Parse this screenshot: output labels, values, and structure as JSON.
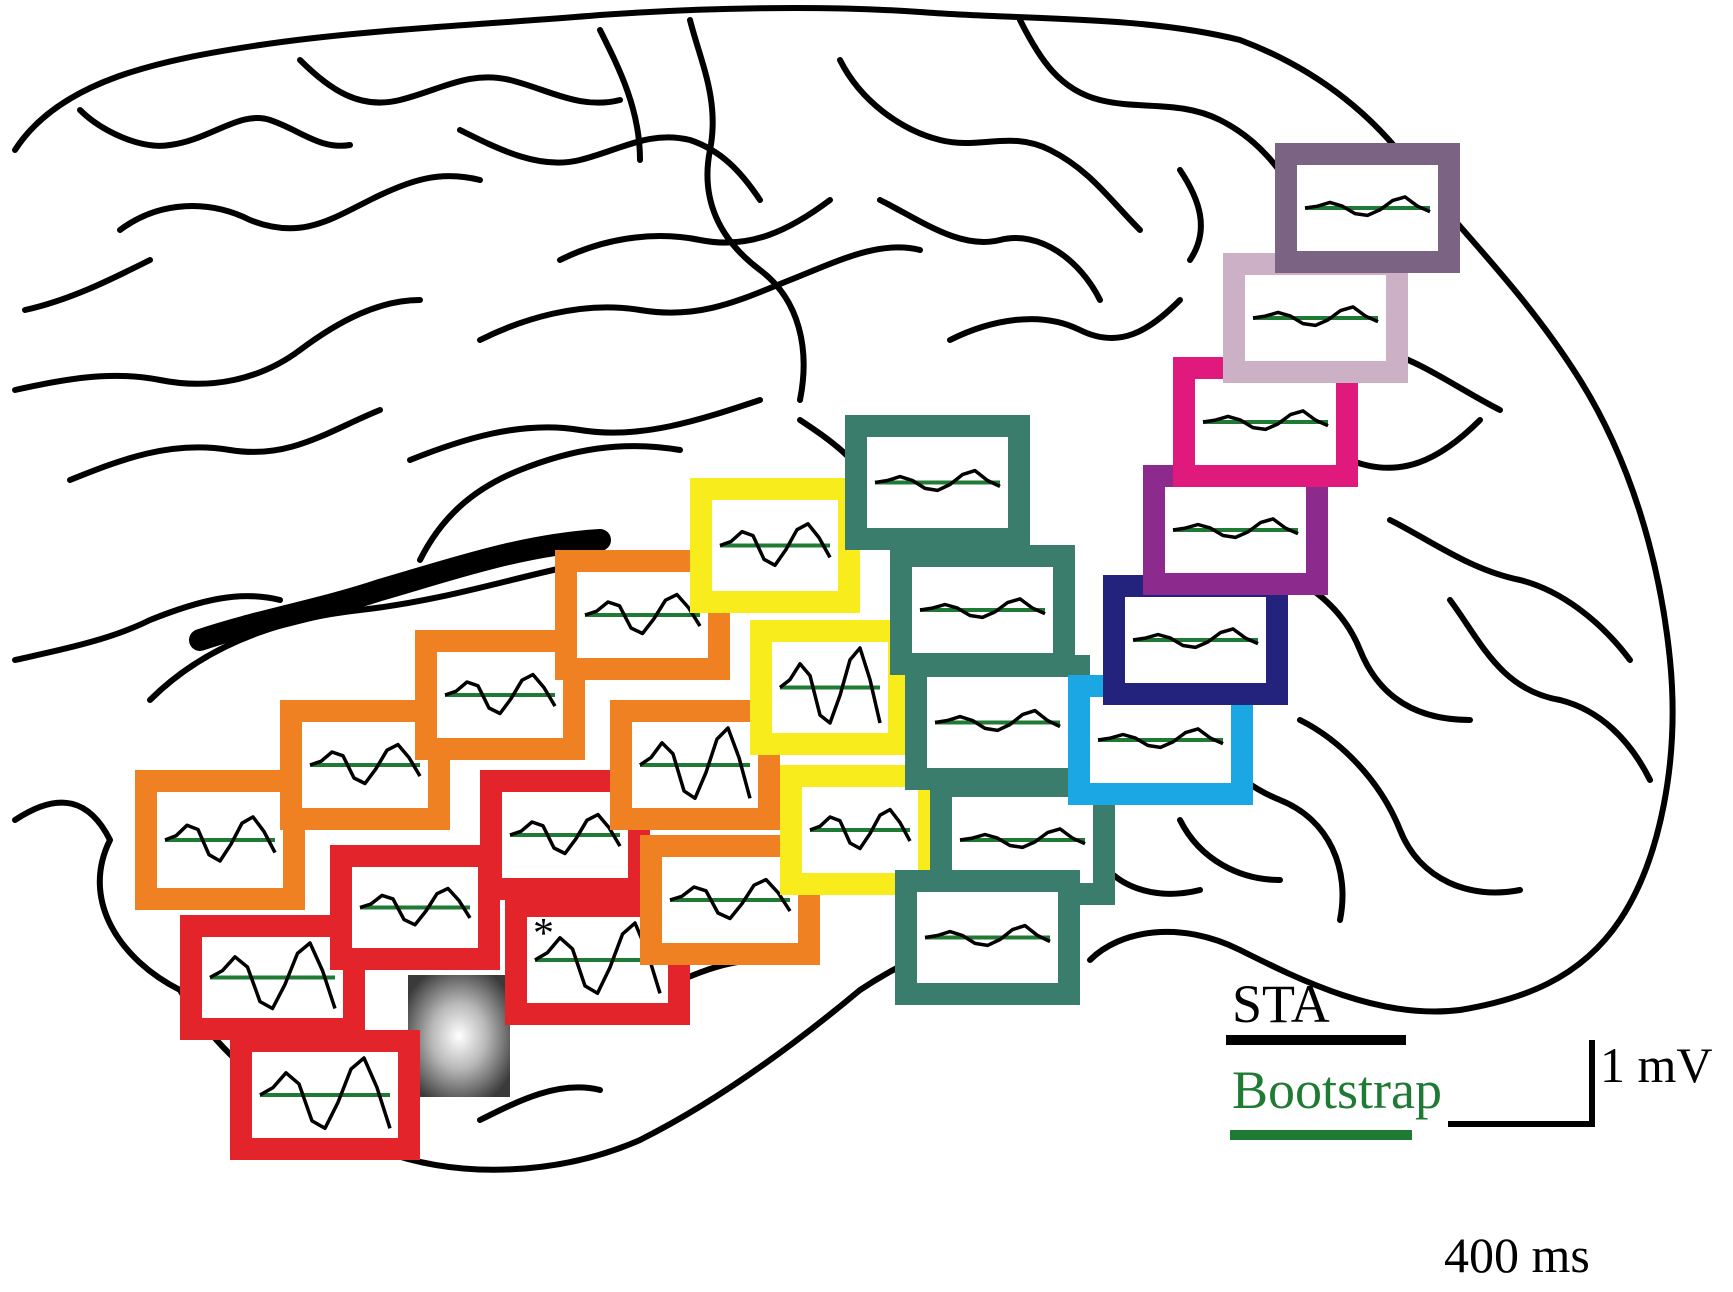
{
  "colors": {
    "outline": "#000000",
    "bootstrap": "#1f7a34",
    "sta": "#000000",
    "groups": {
      "red": "#e3242b",
      "orange": "#f08122",
      "yellow": "#f8ec1c",
      "teal": "#3a7d6c",
      "cyan": "#1aa7e4",
      "navy": "#23237e",
      "violet": "#8d2a8e",
      "magenta": "#e0197d",
      "lilac": "#cbb0c6",
      "mauve": "#7a6383"
    }
  },
  "electrodes": [
    {
      "color": "red",
      "wave": "big"
    },
    {
      "color": "red",
      "wave": "big"
    },
    {
      "color": "red",
      "wave": "mid"
    },
    {
      "color": "red",
      "wave": "big",
      "marked": true
    },
    {
      "color": "red",
      "wave": "mid"
    },
    {
      "color": "orange",
      "wave": "mid"
    },
    {
      "color": "orange",
      "wave": "mid"
    },
    {
      "color": "orange",
      "wave": "mid"
    },
    {
      "color": "orange",
      "wave": "mid"
    },
    {
      "color": "orange",
      "wave": "big"
    },
    {
      "color": "orange",
      "wave": "mid"
    },
    {
      "color": "yellow",
      "wave": "mid"
    },
    {
      "color": "yellow",
      "wave": "big"
    },
    {
      "color": "yellow",
      "wave": "mid"
    },
    {
      "color": "teal",
      "wave": "small"
    },
    {
      "color": "teal",
      "wave": "small"
    },
    {
      "color": "teal",
      "wave": "small"
    },
    {
      "color": "teal",
      "wave": "small"
    },
    {
      "color": "teal",
      "wave": "small"
    },
    {
      "color": "cyan",
      "wave": "small"
    },
    {
      "color": "navy",
      "wave": "small"
    },
    {
      "color": "violet",
      "wave": "small"
    },
    {
      "color": "magenta",
      "wave": "small"
    },
    {
      "color": "lilac",
      "wave": "small"
    },
    {
      "color": "mauve",
      "wave": "small"
    }
  ],
  "marker_symbol": "*",
  "legend": {
    "sta_label": "STA",
    "bootstrap_label": "Bootstrap"
  },
  "scale_bar": {
    "voltage_label": "1 mV",
    "time_label": "400 ms"
  }
}
